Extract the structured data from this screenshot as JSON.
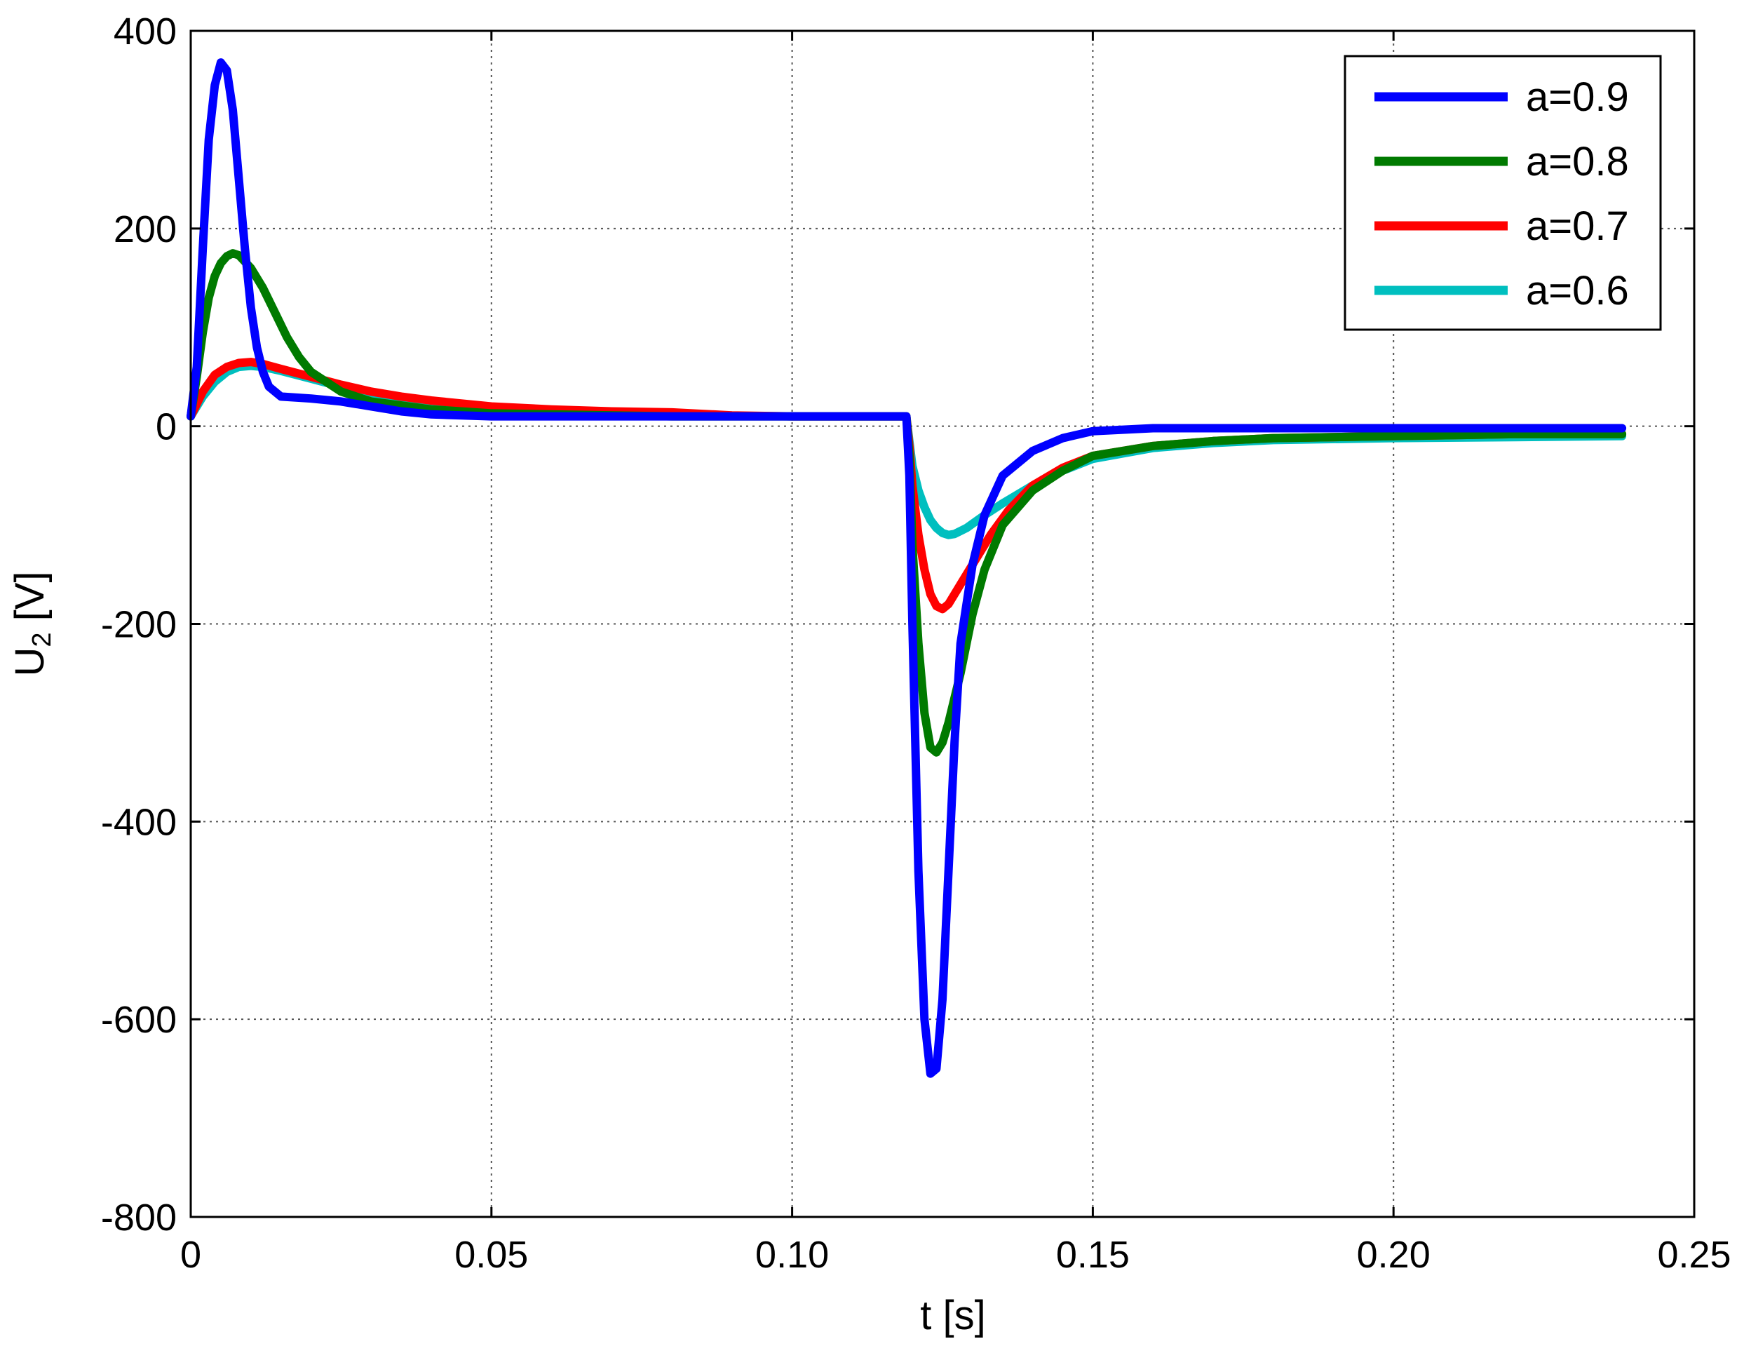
{
  "chart_data": {
    "type": "line",
    "title": "",
    "xlabel": "t  [s]",
    "ylabel": "U",
    "ylabel_subscript": "2",
    "ylabel_unit": " [V]",
    "xlim": [
      0,
      0.25
    ],
    "ylim": [
      -800,
      400
    ],
    "grid": true,
    "legend_position": "top-right",
    "x_ticks": [
      {
        "value": 0,
        "label": "0"
      },
      {
        "value": 0.05,
        "label": "0.05"
      },
      {
        "value": 0.1,
        "label": "0.10"
      },
      {
        "value": 0.15,
        "label": "0.15"
      },
      {
        "value": 0.2,
        "label": "0.20"
      },
      {
        "value": 0.25,
        "label": "0.25"
      }
    ],
    "y_ticks": [
      {
        "value": 400,
        "label": "400"
      },
      {
        "value": 200,
        "label": "200"
      },
      {
        "value": 0,
        "label": "0"
      },
      {
        "value": -200,
        "label": "-200"
      },
      {
        "value": -400,
        "label": "-400"
      },
      {
        "value": -600,
        "label": "-600"
      },
      {
        "value": -800,
        "label": "-800"
      }
    ],
    "series": [
      {
        "name": "a=0.9",
        "color": "#0000ff",
        "points": [
          [
            0,
            10
          ],
          [
            0.001,
            60
          ],
          [
            0.002,
            180
          ],
          [
            0.003,
            290
          ],
          [
            0.004,
            345
          ],
          [
            0.005,
            368
          ],
          [
            0.006,
            360
          ],
          [
            0.007,
            320
          ],
          [
            0.008,
            250
          ],
          [
            0.009,
            180
          ],
          [
            0.01,
            120
          ],
          [
            0.011,
            80
          ],
          [
            0.012,
            55
          ],
          [
            0.013,
            40
          ],
          [
            0.015,
            30
          ],
          [
            0.02,
            28
          ],
          [
            0.025,
            25
          ],
          [
            0.03,
            20
          ],
          [
            0.035,
            15
          ],
          [
            0.04,
            12
          ],
          [
            0.05,
            10
          ],
          [
            0.08,
            10
          ],
          [
            0.1,
            10
          ],
          [
            0.119,
            10
          ],
          [
            0.1195,
            -50
          ],
          [
            0.12,
            -200
          ],
          [
            0.121,
            -450
          ],
          [
            0.122,
            -600
          ],
          [
            0.123,
            -655
          ],
          [
            0.124,
            -650
          ],
          [
            0.125,
            -580
          ],
          [
            0.126,
            -450
          ],
          [
            0.127,
            -320
          ],
          [
            0.128,
            -220
          ],
          [
            0.13,
            -140
          ],
          [
            0.132,
            -90
          ],
          [
            0.135,
            -50
          ],
          [
            0.14,
            -25
          ],
          [
            0.145,
            -12
          ],
          [
            0.15,
            -5
          ],
          [
            0.16,
            -2
          ],
          [
            0.18,
            -2
          ],
          [
            0.2,
            -2
          ],
          [
            0.22,
            -2
          ],
          [
            0.238,
            -2
          ]
        ]
      },
      {
        "name": "a=0.8",
        "color": "#007a00",
        "points": [
          [
            0,
            10
          ],
          [
            0.001,
            50
          ],
          [
            0.002,
            95
          ],
          [
            0.003,
            130
          ],
          [
            0.004,
            152
          ],
          [
            0.005,
            165
          ],
          [
            0.006,
            172
          ],
          [
            0.007,
            175
          ],
          [
            0.008,
            173
          ],
          [
            0.01,
            160
          ],
          [
            0.012,
            140
          ],
          [
            0.014,
            115
          ],
          [
            0.016,
            90
          ],
          [
            0.018,
            70
          ],
          [
            0.02,
            55
          ],
          [
            0.025,
            35
          ],
          [
            0.03,
            25
          ],
          [
            0.04,
            17
          ],
          [
            0.05,
            13
          ],
          [
            0.08,
            10
          ],
          [
            0.1,
            10
          ],
          [
            0.119,
            10
          ],
          [
            0.1195,
            -30
          ],
          [
            0.12,
            -120
          ],
          [
            0.121,
            -220
          ],
          [
            0.122,
            -290
          ],
          [
            0.123,
            -325
          ],
          [
            0.124,
            -330
          ],
          [
            0.125,
            -320
          ],
          [
            0.126,
            -300
          ],
          [
            0.128,
            -250
          ],
          [
            0.13,
            -190
          ],
          [
            0.132,
            -145
          ],
          [
            0.135,
            -100
          ],
          [
            0.14,
            -65
          ],
          [
            0.145,
            -45
          ],
          [
            0.15,
            -30
          ],
          [
            0.16,
            -20
          ],
          [
            0.17,
            -15
          ],
          [
            0.18,
            -12
          ],
          [
            0.2,
            -10
          ],
          [
            0.22,
            -8
          ],
          [
            0.238,
            -8
          ]
        ]
      },
      {
        "name": "a=0.7",
        "color": "#ff0000",
        "points": [
          [
            0,
            10
          ],
          [
            0.002,
            35
          ],
          [
            0.004,
            52
          ],
          [
            0.006,
            60
          ],
          [
            0.008,
            64
          ],
          [
            0.01,
            65
          ],
          [
            0.012,
            63
          ],
          [
            0.015,
            58
          ],
          [
            0.02,
            50
          ],
          [
            0.025,
            42
          ],
          [
            0.03,
            35
          ],
          [
            0.035,
            30
          ],
          [
            0.04,
            26
          ],
          [
            0.05,
            20
          ],
          [
            0.06,
            17
          ],
          [
            0.07,
            15
          ],
          [
            0.08,
            14
          ],
          [
            0.09,
            11
          ],
          [
            0.1,
            10
          ],
          [
            0.119,
            10
          ],
          [
            0.1195,
            -20
          ],
          [
            0.12,
            -60
          ],
          [
            0.121,
            -110
          ],
          [
            0.122,
            -145
          ],
          [
            0.123,
            -170
          ],
          [
            0.124,
            -182
          ],
          [
            0.125,
            -185
          ],
          [
            0.126,
            -180
          ],
          [
            0.128,
            -160
          ],
          [
            0.13,
            -140
          ],
          [
            0.133,
            -110
          ],
          [
            0.136,
            -85
          ],
          [
            0.14,
            -60
          ],
          [
            0.145,
            -42
          ],
          [
            0.15,
            -30
          ],
          [
            0.16,
            -20
          ],
          [
            0.17,
            -15
          ],
          [
            0.18,
            -12
          ],
          [
            0.2,
            -10
          ],
          [
            0.22,
            -8
          ],
          [
            0.238,
            -8
          ]
        ]
      },
      {
        "name": "a=0.6",
        "color": "#00bfbf",
        "points": [
          [
            0,
            10
          ],
          [
            0.002,
            30
          ],
          [
            0.004,
            45
          ],
          [
            0.006,
            55
          ],
          [
            0.008,
            60
          ],
          [
            0.01,
            61
          ],
          [
            0.012,
            60
          ],
          [
            0.015,
            56
          ],
          [
            0.02,
            48
          ],
          [
            0.025,
            40
          ],
          [
            0.03,
            33
          ],
          [
            0.035,
            27
          ],
          [
            0.04,
            22
          ],
          [
            0.05,
            16
          ],
          [
            0.06,
            13
          ],
          [
            0.08,
            11
          ],
          [
            0.1,
            10
          ],
          [
            0.119,
            10
          ],
          [
            0.1195,
            -15
          ],
          [
            0.12,
            -40
          ],
          [
            0.121,
            -65
          ],
          [
            0.122,
            -82
          ],
          [
            0.123,
            -95
          ],
          [
            0.124,
            -103
          ],
          [
            0.125,
            -108
          ],
          [
            0.126,
            -110
          ],
          [
            0.127,
            -109
          ],
          [
            0.129,
            -103
          ],
          [
            0.132,
            -90
          ],
          [
            0.135,
            -78
          ],
          [
            0.14,
            -60
          ],
          [
            0.145,
            -45
          ],
          [
            0.15,
            -33
          ],
          [
            0.16,
            -22
          ],
          [
            0.17,
            -17
          ],
          [
            0.18,
            -14
          ],
          [
            0.2,
            -12
          ],
          [
            0.22,
            -11
          ],
          [
            0.238,
            -10
          ]
        ]
      }
    ]
  }
}
